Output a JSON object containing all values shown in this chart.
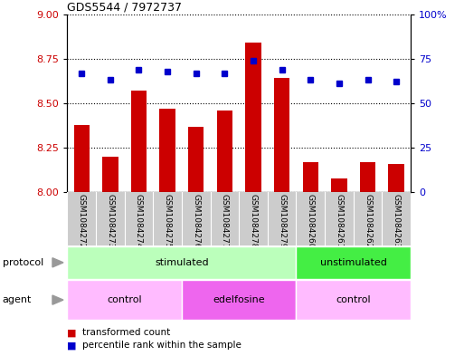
{
  "title": "GDS5544 / 7972737",
  "samples": [
    "GSM1084272",
    "GSM1084273",
    "GSM1084274",
    "GSM1084275",
    "GSM1084276",
    "GSM1084277",
    "GSM1084278",
    "GSM1084279",
    "GSM1084260",
    "GSM1084261",
    "GSM1084262",
    "GSM1084263"
  ],
  "transformed_count": [
    8.38,
    8.2,
    8.57,
    8.47,
    8.37,
    8.46,
    8.84,
    8.64,
    8.17,
    8.08,
    8.17,
    8.16
  ],
  "percentile_rank": [
    67,
    63,
    69,
    68,
    67,
    67,
    74,
    69,
    63,
    61,
    63,
    62
  ],
  "ylim_left": [
    8.0,
    9.0
  ],
  "ylim_right": [
    0,
    100
  ],
  "yticks_left": [
    8.0,
    8.25,
    8.5,
    8.75,
    9.0
  ],
  "yticks_right": [
    0,
    25,
    50,
    75,
    100
  ],
  "bar_color": "#cc0000",
  "dot_color": "#0000cc",
  "sample_bg_color": "#cccccc",
  "protocol_groups": [
    {
      "label": "stimulated",
      "start": 0,
      "end": 8,
      "color": "#bbffbb"
    },
    {
      "label": "unstimulated",
      "start": 8,
      "end": 12,
      "color": "#44ee44"
    }
  ],
  "agent_groups": [
    {
      "label": "control",
      "start": 0,
      "end": 4,
      "color": "#ffbbff"
    },
    {
      "label": "edelfosine",
      "start": 4,
      "end": 8,
      "color": "#ee66ee"
    },
    {
      "label": "control",
      "start": 8,
      "end": 12,
      "color": "#ffbbff"
    }
  ],
  "row_label_color": "#555555",
  "arrow_color": "#888888"
}
